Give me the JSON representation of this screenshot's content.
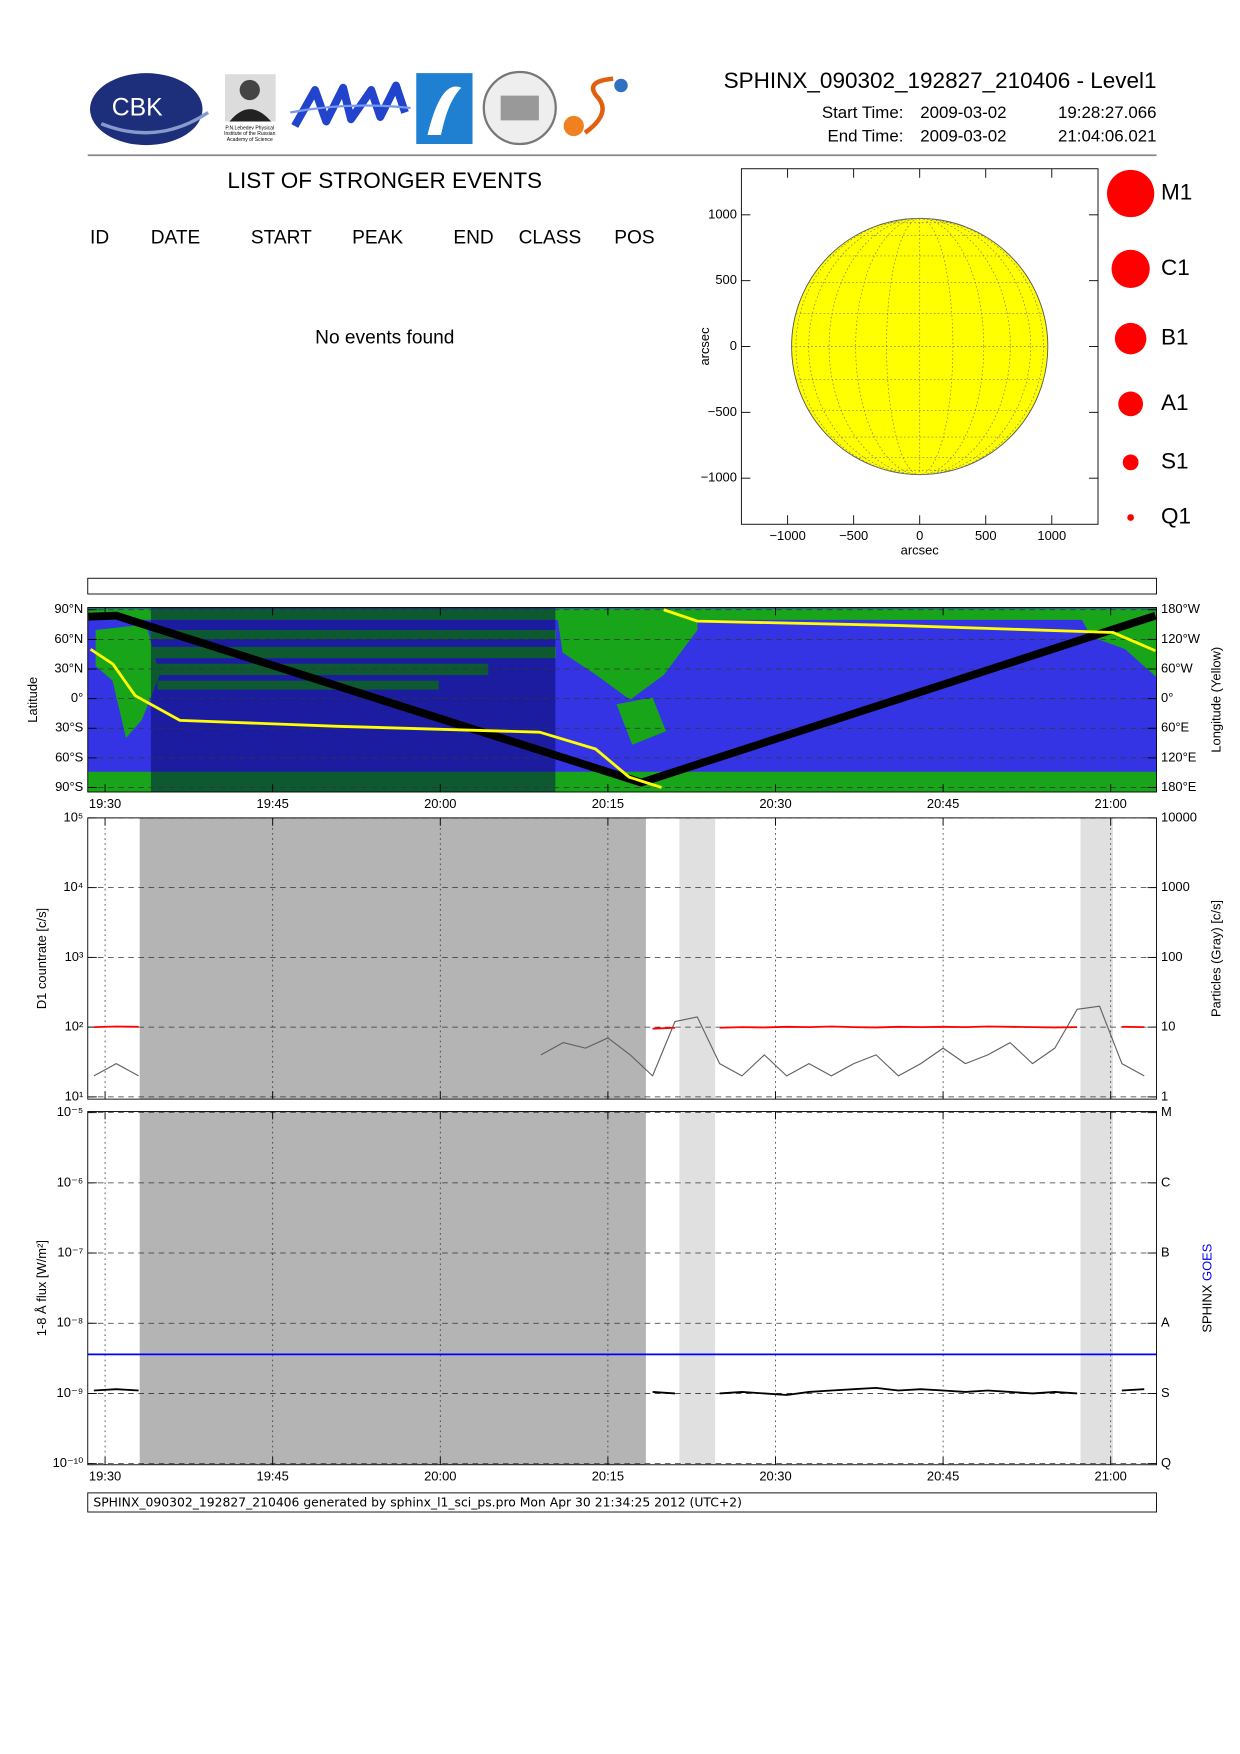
{
  "header": {
    "title": "SPHINX_090302_192827_210406 - Level1",
    "start_label": "Start Time:",
    "start_date": "2009-03-02",
    "start_time": "19:28:27.066",
    "end_label": "End Time:",
    "end_date": "2009-03-02",
    "end_time": "21:04:06.021"
  },
  "logos": {
    "cbk": "CBK",
    "lebedev": [
      "P.N.Lebedev Physical",
      "Institute of the Russian",
      "Academy of Science"
    ]
  },
  "events": {
    "title": "LIST OF STRONGER EVENTS",
    "columns": [
      "ID",
      "DATE",
      "START",
      "PEAK",
      "END",
      "CLASS",
      "POS"
    ],
    "message": "No events found"
  },
  "footer": "SPHINX_090302_192827_210406 generated by sphinx_l1_sci_ps.pro Mon Apr 30 21:34:25 2012 (UTC+2)",
  "chart_data": [
    {
      "type": "disk",
      "xlabel": "arcsec",
      "ylabel": "arcsec",
      "xlim": [
        -1350,
        1350
      ],
      "ylim": [
        -1350,
        1350
      ],
      "xticks": [
        {
          "value": -1000,
          "label": "−1000"
        },
        {
          "value": -500,
          "label": "−500"
        },
        0,
        500,
        1000
      ],
      "yticks": [
        {
          "value": -1000,
          "label": "−1000"
        },
        {
          "value": -500,
          "label": "−500"
        },
        0,
        500,
        1000
      ],
      "disk_radius": 970,
      "disk_color": "#ffff00",
      "legend": {
        "classes": [
          "M1",
          "C1",
          "B1",
          "A1",
          "S1",
          "Q1"
        ],
        "color": "#ff0000"
      }
    },
    {
      "type": "map",
      "ylabel": "Latitude",
      "y2label": "Longitude (Yellow)",
      "xlim": [
        1168.45,
        1264.1
      ],
      "xticks": [
        {
          "value": 1170,
          "label": "19:30"
        },
        {
          "value": 1185,
          "label": "19:45"
        },
        {
          "value": 1200,
          "label": "20:00"
        },
        {
          "value": 1215,
          "label": "20:15"
        },
        {
          "value": 1230,
          "label": "20:30"
        },
        {
          "value": 1245,
          "label": "20:45"
        },
        {
          "value": 1260,
          "label": "21:00"
        }
      ],
      "ylim": [
        -90,
        90
      ],
      "yticks": [
        {
          "value": 90,
          "label": "90°N"
        },
        {
          "value": 60,
          "label": "60°N"
        },
        {
          "value": 30,
          "label": "30°N"
        },
        {
          "value": 0,
          "label": "0°"
        },
        {
          "value": -30,
          "label": "30°S"
        },
        {
          "value": -60,
          "label": "60°S"
        },
        {
          "value": -90,
          "label": "90°S"
        }
      ],
      "y2lim": [
        180,
        -180
      ],
      "y2ticks": [
        {
          "value": -180,
          "label": "180°W"
        },
        {
          "value": -120,
          "label": "120°W"
        },
        {
          "value": -60,
          "label": "60°W"
        },
        {
          "value": 0,
          "label": "0°"
        },
        {
          "value": 60,
          "label": "60°E"
        },
        {
          "value": 120,
          "label": "120°E"
        },
        {
          "value": 180,
          "label": "180°E"
        }
      ],
      "grid": true,
      "shaded": [
        {
          "range": [
            1174.1,
            1210.3
          ],
          "color": "#000050"
        }
      ],
      "series": [
        {
          "color": "#000000",
          "x": [
            1168.5,
            1171,
            1218,
            1264
          ],
          "values": [
            83,
            84,
            -85,
            84
          ]
        },
        {
          "color": "#ffff00",
          "axis": "y2",
          "x": [
            1168.7,
            1170.7,
            1172.7,
            1176.7,
            1190.8,
            1208.9,
            1213.9,
            1216.9,
            1219.8
          ],
          "values": [
            -100,
            -70,
            -6,
            44,
            56,
            68,
            102,
            159,
            180
          ]
        },
        {
          "color": "#ffff00",
          "axis": "y2",
          "x": [
            1220,
            1223,
            1241.1,
            1260.2,
            1264
          ],
          "values": [
            -180,
            -157,
            -148,
            -134,
            -97
          ]
        }
      ]
    },
    {
      "type": "line",
      "log": true,
      "xtick_labels": false,
      "ylabel": "D1 countrate [c/s]",
      "y2label": "Particles (Gray) [c/s]",
      "xlim": [
        1168.45,
        1264.1
      ],
      "xticks": [
        {
          "value": 1170,
          "label": "19:30"
        },
        {
          "value": 1185,
          "label": "19:45"
        },
        {
          "value": 1200,
          "label": "20:00"
        },
        {
          "value": 1215,
          "label": "20:15"
        },
        {
          "value": 1230,
          "label": "20:30"
        },
        {
          "value": 1245,
          "label": "20:45"
        },
        {
          "value": 1260,
          "label": "21:00"
        }
      ],
      "ylim": [
        10,
        100000
      ],
      "yticks": [
        {
          "value": 10,
          "label": "10¹"
        },
        {
          "value": 100,
          "label": "10²"
        },
        {
          "value": 1000,
          "label": "10³"
        },
        {
          "value": 10000,
          "label": "10⁴"
        },
        {
          "value": 100000,
          "label": "10⁵"
        }
      ],
      "y2lim": [
        1,
        10000
      ],
      "y2ticks": [
        1,
        10,
        100,
        1000,
        10000
      ],
      "grid": true,
      "shaded": [
        {
          "range": [
            1173.1,
            1218.4
          ],
          "color": "#b4b4b4"
        },
        {
          "range": [
            1221.4,
            1224.6
          ],
          "color": "#e0e0e0"
        },
        {
          "range": [
            1257.3,
            1260.2
          ],
          "color": "#e0e0e0"
        }
      ],
      "x": [
        1169,
        1171,
        1173,
        1175,
        1177,
        1179,
        1181,
        1183,
        1185,
        1187,
        1189,
        1191,
        1193,
        1195,
        1197,
        1199,
        1201,
        1203,
        1205,
        1207,
        1209,
        1211,
        1213,
        1215,
        1217,
        1219,
        1221,
        1223,
        1225,
        1227,
        1229,
        1231,
        1233,
        1235,
        1237,
        1239,
        1241,
        1243,
        1245,
        1247,
        1249,
        1251,
        1253,
        1255,
        1257,
        1259,
        1261,
        1263
      ],
      "series": [
        {
          "color": "#606060",
          "axis": "y2",
          "values": [
            2,
            3,
            2,
            null,
            null,
            null,
            null,
            null,
            null,
            null,
            null,
            null,
            null,
            null,
            null,
            null,
            null,
            null,
            null,
            null,
            4,
            6,
            5,
            7,
            4,
            2,
            12,
            14,
            3,
            2,
            4,
            2,
            3,
            2,
            3,
            4,
            2,
            3,
            5,
            3,
            4,
            6,
            3,
            5,
            18,
            20,
            3,
            2
          ]
        },
        {
          "color": "#ff0000",
          "values": [
            100,
            102,
            101,
            null,
            null,
            null,
            null,
            null,
            null,
            null,
            null,
            null,
            null,
            null,
            null,
            null,
            null,
            null,
            null,
            null,
            null,
            null,
            null,
            null,
            null,
            95,
            98,
            null,
            98,
            100,
            99,
            101,
            100,
            102,
            100,
            99,
            101,
            100,
            101,
            100,
            102,
            101,
            100,
            99,
            100,
            null,
            101,
            100
          ]
        }
      ]
    },
    {
      "type": "line",
      "log": true,
      "ylabel": "1-8 Å flux [W/m²]",
      "xlim": [
        1168.45,
        1264.1
      ],
      "xticks": [
        {
          "value": 1170,
          "label": "19:30"
        },
        {
          "value": 1185,
          "label": "19:45"
        },
        {
          "value": 1200,
          "label": "20:00"
        },
        {
          "value": 1215,
          "label": "20:15"
        },
        {
          "value": 1230,
          "label": "20:30"
        },
        {
          "value": 1245,
          "label": "20:45"
        },
        {
          "value": 1260,
          "label": "21:00"
        }
      ],
      "ylim": [
        1e-10,
        1e-05
      ],
      "yticks": [
        {
          "value": 1e-10,
          "label": "10⁻¹⁰"
        },
        {
          "value": 1e-09,
          "label": "10⁻⁹"
        },
        {
          "value": 1e-08,
          "label": "10⁻⁸"
        },
        {
          "value": 1e-07,
          "label": "10⁻⁷"
        },
        {
          "value": 1e-06,
          "label": "10⁻⁶"
        },
        {
          "value": 1e-05,
          "label": "10⁻⁵"
        }
      ],
      "y2lim": [
        1e-10,
        1e-05
      ],
      "y2ticks": [
        {
          "value": 1e-10,
          "label": "Q"
        },
        {
          "value": 1e-09,
          "label": "S"
        },
        {
          "value": 1e-08,
          "label": "A"
        },
        {
          "value": 1e-07,
          "label": "B"
        },
        {
          "value": 1e-06,
          "label": "C"
        },
        {
          "value": 1e-05,
          "label": "M"
        }
      ],
      "grid": true,
      "shaded": [
        {
          "range": [
            1173.1,
            1218.4
          ],
          "color": "#b4b4b4"
        },
        {
          "range": [
            1221.4,
            1224.6
          ],
          "color": "#e0e0e0"
        },
        {
          "range": [
            1257.3,
            1260.2
          ],
          "color": "#e0e0e0"
        }
      ],
      "x": [
        1169,
        1171,
        1173,
        1175,
        1177,
        1179,
        1181,
        1183,
        1185,
        1187,
        1189,
        1191,
        1193,
        1195,
        1197,
        1199,
        1201,
        1203,
        1205,
        1207,
        1209,
        1211,
        1213,
        1215,
        1217,
        1219,
        1221,
        1223,
        1225,
        1227,
        1229,
        1231,
        1233,
        1235,
        1237,
        1239,
        1241,
        1243,
        1245,
        1247,
        1249,
        1251,
        1253,
        1255,
        1257,
        1259,
        1261,
        1263
      ],
      "series": [
        {
          "name": "SPHINX",
          "color": "#000000",
          "values": [
            1.1e-09,
            1.15e-09,
            1.1e-09,
            null,
            null,
            null,
            null,
            null,
            null,
            null,
            null,
            null,
            null,
            null,
            null,
            null,
            null,
            null,
            null,
            null,
            null,
            null,
            null,
            null,
            null,
            1.05e-09,
            1e-09,
            null,
            1e-09,
            1.05e-09,
            1e-09,
            9.5e-10,
            1.05e-09,
            1.1e-09,
            1.15e-09,
            1.2e-09,
            1.1e-09,
            1.15e-09,
            1.1e-09,
            1.05e-09,
            1.1e-09,
            1.05e-09,
            1e-09,
            1.05e-09,
            1e-09,
            null,
            1.1e-09,
            1.15e-09
          ]
        },
        {
          "name": "GOES",
          "color": "#0000ff",
          "x": [
            1168.45,
            1264.1
          ],
          "values": [
            3.6e-09,
            3.6e-09
          ]
        }
      ]
    }
  ]
}
